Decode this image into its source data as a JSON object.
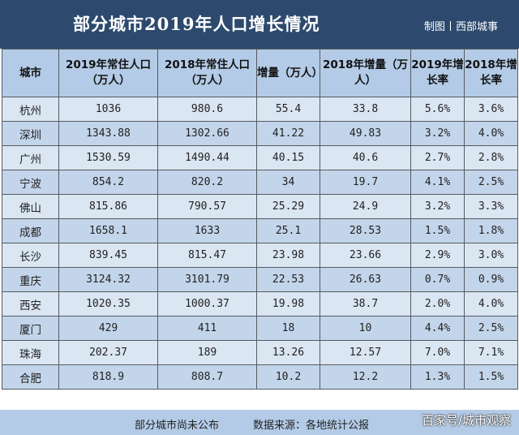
{
  "header": {
    "title": "部分城市2019年人口增长情况",
    "credit": "制图丨西部城事"
  },
  "columns": [
    "城市",
    "2019年常住人口（万人）",
    "2018年常住人口（万人）",
    "增量（万人）",
    "2018年增量（万人）",
    "2019年增长率",
    "2018年增长率"
  ],
  "rows": [
    [
      "杭州",
      "1036",
      "980.6",
      "55.4",
      "33.8",
      "5.6%",
      "3.6%"
    ],
    [
      "深圳",
      "1343.88",
      "1302.66",
      "41.22",
      "49.83",
      "3.2%",
      "4.0%"
    ],
    [
      "广州",
      "1530.59",
      "1490.44",
      "40.15",
      "40.6",
      "2.7%",
      "2.8%"
    ],
    [
      "宁波",
      "854.2",
      "820.2",
      "34",
      "19.7",
      "4.1%",
      "2.5%"
    ],
    [
      "佛山",
      "815.86",
      "790.57",
      "25.29",
      "24.9",
      "3.2%",
      "3.3%"
    ],
    [
      "成都",
      "1658.1",
      "1633",
      "25.1",
      "28.53",
      "1.5%",
      "1.8%"
    ],
    [
      "长沙",
      "839.45",
      "815.47",
      "23.98",
      "23.66",
      "2.9%",
      "3.0%"
    ],
    [
      "重庆",
      "3124.32",
      "3101.79",
      "22.53",
      "26.63",
      "0.7%",
      "0.9%"
    ],
    [
      "西安",
      "1020.35",
      "1000.37",
      "19.98",
      "38.7",
      "2.0%",
      "4.0%"
    ],
    [
      "厦门",
      "429",
      "411",
      "18",
      "10",
      "4.4%",
      "2.5%"
    ],
    [
      "珠海",
      "202.37",
      "189",
      "13.26",
      "12.57",
      "7.0%",
      "7.1%"
    ],
    [
      "合肥",
      "818.9",
      "808.7",
      "10.2",
      "12.2",
      "1.3%",
      "1.5%"
    ]
  ],
  "footer": {
    "note": "部分城市尚未公布",
    "source": "数据来源：各地统计公报",
    "brand": "百家号/城市观察"
  }
}
